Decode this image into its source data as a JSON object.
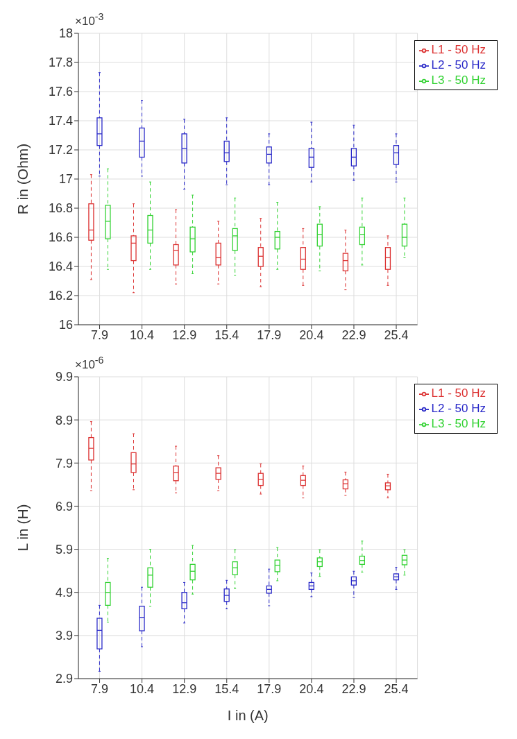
{
  "chart_data": [
    {
      "type": "box",
      "ylabel": "R in (Ohm)",
      "annotations": [
        "×10$^{-3}$"
      ],
      "categories": [
        "7.9",
        "10.4",
        "12.9",
        "15.4",
        "17.9",
        "20.4",
        "22.9",
        "25.4"
      ],
      "ylim": [
        16,
        18
      ],
      "yticks": [
        16,
        16.2,
        16.4,
        16.6,
        16.8,
        17,
        17.2,
        17.4,
        17.6,
        17.8,
        18
      ],
      "grid": true,
      "legend": "top right",
      "line_style": "dashed",
      "series": [
        {
          "name": "L1 - 50 Hz",
          "color": "#dc3232",
          "boxes": [
            {
              "low": 16.31,
              "q1": 16.58,
              "median": 16.65,
              "q3": 16.83,
              "high": 17.03
            },
            {
              "low": 16.22,
              "q1": 16.44,
              "median": 16.56,
              "q3": 16.61,
              "high": 16.83
            },
            {
              "low": 16.28,
              "q1": 16.41,
              "median": 16.51,
              "q3": 16.55,
              "high": 16.79
            },
            {
              "low": 16.28,
              "q1": 16.41,
              "median": 16.46,
              "q3": 16.56,
              "high": 16.71
            },
            {
              "low": 16.26,
              "q1": 16.4,
              "median": 16.47,
              "q3": 16.53,
              "high": 16.73
            },
            {
              "low": 16.27,
              "q1": 16.38,
              "median": 16.45,
              "q3": 16.53,
              "high": 16.66
            },
            {
              "low": 16.24,
              "q1": 16.37,
              "median": 16.44,
              "q3": 16.49,
              "high": 16.65
            },
            {
              "low": 16.27,
              "q1": 16.38,
              "median": 16.46,
              "q3": 16.53,
              "high": 16.61
            }
          ]
        },
        {
          "name": "L2 - 50 Hz",
          "color": "#2828c8",
          "boxes": [
            {
              "low": 17.02,
              "q1": 17.23,
              "median": 17.31,
              "q3": 17.42,
              "high": 17.73
            },
            {
              "low": 17.02,
              "q1": 17.15,
              "median": 17.26,
              "q3": 17.35,
              "high": 17.54
            },
            {
              "low": 16.93,
              "q1": 17.11,
              "median": 17.21,
              "q3": 17.31,
              "high": 17.41
            },
            {
              "low": 16.96,
              "q1": 17.12,
              "median": 17.18,
              "q3": 17.26,
              "high": 17.42
            },
            {
              "low": 16.96,
              "q1": 17.11,
              "median": 17.17,
              "q3": 17.22,
              "high": 17.31
            },
            {
              "low": 16.98,
              "q1": 17.08,
              "median": 17.15,
              "q3": 17.21,
              "high": 17.39
            },
            {
              "low": 16.99,
              "q1": 17.09,
              "median": 17.15,
              "q3": 17.21,
              "high": 17.37
            },
            {
              "low": 16.98,
              "q1": 17.1,
              "median": 17.18,
              "q3": 17.23,
              "high": 17.31
            }
          ]
        },
        {
          "name": "L3 - 50 Hz",
          "color": "#32d232",
          "boxes": [
            {
              "low": 16.38,
              "q1": 16.59,
              "median": 16.71,
              "q3": 16.82,
              "high": 17.07
            },
            {
              "low": 16.38,
              "q1": 16.56,
              "median": 16.65,
              "q3": 16.75,
              "high": 16.98
            },
            {
              "low": 16.35,
              "q1": 16.5,
              "median": 16.59,
              "q3": 16.67,
              "high": 16.89
            },
            {
              "low": 16.34,
              "q1": 16.51,
              "median": 16.61,
              "q3": 16.66,
              "high": 16.87
            },
            {
              "low": 16.38,
              "q1": 16.52,
              "median": 16.6,
              "q3": 16.64,
              "high": 16.84
            },
            {
              "low": 16.37,
              "q1": 16.54,
              "median": 16.62,
              "q3": 16.69,
              "high": 16.81
            },
            {
              "low": 16.41,
              "q1": 16.55,
              "median": 16.62,
              "q3": 16.67,
              "high": 16.87
            },
            {
              "low": 16.46,
              "q1": 16.54,
              "median": 16.6,
              "q3": 16.69,
              "high": 16.87
            }
          ]
        }
      ]
    },
    {
      "type": "box",
      "ylabel": "L in (H)",
      "xlabel": "I in (A)",
      "annotations": [
        "×10$^{-6}$"
      ],
      "categories": [
        "7.9",
        "10.4",
        "12.9",
        "15.4",
        "17.9",
        "20.4",
        "22.9",
        "25.4"
      ],
      "ylim": [
        2.9,
        9.9
      ],
      "yticks": [
        2.9,
        3.9,
        4.9,
        5.9,
        6.9,
        7.9,
        8.9,
        9.9
      ],
      "grid": true,
      "legend": "top right",
      "line_style": "dashed",
      "series": [
        {
          "name": "L1 - 50 Hz",
          "color": "#dc3232",
          "boxes": [
            {
              "low": 7.26,
              "q1": 7.97,
              "median": 8.24,
              "q3": 8.49,
              "high": 8.86
            },
            {
              "low": 7.28,
              "q1": 7.68,
              "median": 7.88,
              "q3": 8.14,
              "high": 8.58
            },
            {
              "low": 7.21,
              "q1": 7.49,
              "median": 7.68,
              "q3": 7.83,
              "high": 8.29
            },
            {
              "low": 7.26,
              "q1": 7.52,
              "median": 7.66,
              "q3": 7.79,
              "high": 8.07
            },
            {
              "low": 7.18,
              "q1": 7.38,
              "median": 7.52,
              "q3": 7.66,
              "high": 7.88
            },
            {
              "low": 7.09,
              "q1": 7.38,
              "median": 7.5,
              "q3": 7.61,
              "high": 7.83
            },
            {
              "low": 7.15,
              "q1": 7.3,
              "median": 7.42,
              "q3": 7.51,
              "high": 7.69
            },
            {
              "low": 7.09,
              "q1": 7.28,
              "median": 7.37,
              "q3": 7.44,
              "high": 7.64
            }
          ]
        },
        {
          "name": "L2 - 50 Hz",
          "color": "#2828c8",
          "boxes": [
            {
              "low": 3.07,
              "q1": 3.59,
              "median": 4.02,
              "q3": 4.3,
              "high": 4.6
            },
            {
              "low": 3.64,
              "q1": 4.01,
              "median": 4.32,
              "q3": 4.58,
              "high": 5.02
            },
            {
              "low": 4.19,
              "q1": 4.52,
              "median": 4.66,
              "q3": 4.9,
              "high": 5.13
            },
            {
              "low": 4.52,
              "q1": 4.69,
              "median": 4.83,
              "q3": 4.98,
              "high": 5.18
            },
            {
              "low": 4.59,
              "q1": 4.88,
              "median": 4.97,
              "q3": 5.05,
              "high": 5.44
            },
            {
              "low": 4.8,
              "q1": 4.97,
              "median": 5.05,
              "q3": 5.13,
              "high": 5.35
            },
            {
              "low": 4.78,
              "q1": 5.07,
              "median": 5.17,
              "q3": 5.26,
              "high": 5.39
            },
            {
              "low": 4.97,
              "q1": 5.19,
              "median": 5.26,
              "q3": 5.33,
              "high": 5.48
            }
          ]
        },
        {
          "name": "L3 - 50 Hz",
          "color": "#32d232",
          "boxes": [
            {
              "low": 4.21,
              "q1": 4.6,
              "median": 4.9,
              "q3": 5.13,
              "high": 5.69
            },
            {
              "low": 4.58,
              "q1": 5.02,
              "median": 5.3,
              "q3": 5.47,
              "high": 5.9
            },
            {
              "low": 4.86,
              "q1": 5.19,
              "median": 5.39,
              "q3": 5.55,
              "high": 5.99
            },
            {
              "low": 4.99,
              "q1": 5.31,
              "median": 5.47,
              "q3": 5.61,
              "high": 5.89
            },
            {
              "low": 5.17,
              "q1": 5.38,
              "median": 5.53,
              "q3": 5.65,
              "high": 5.94
            },
            {
              "low": 5.27,
              "q1": 5.5,
              "median": 5.61,
              "q3": 5.7,
              "high": 5.89
            },
            {
              "low": 5.37,
              "q1": 5.55,
              "median": 5.64,
              "q3": 5.74,
              "high": 6.09
            },
            {
              "low": 5.3,
              "q1": 5.54,
              "median": 5.65,
              "q3": 5.76,
              "high": 5.89
            }
          ]
        }
      ]
    }
  ]
}
